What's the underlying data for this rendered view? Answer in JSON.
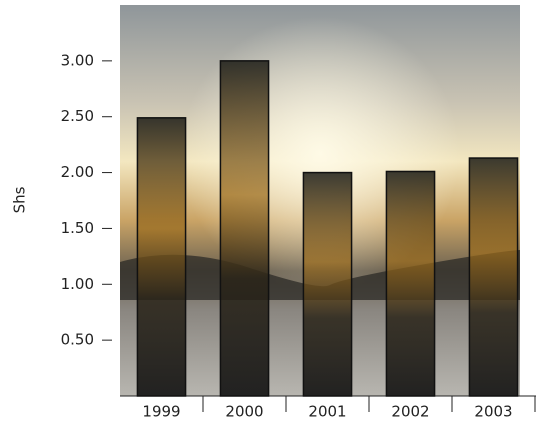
{
  "chart_data": {
    "type": "bar",
    "y_label": "Shs",
    "categories": [
      "1999",
      "2000",
      "2001",
      "2002",
      "2003"
    ],
    "values": [
      2.49,
      3.0,
      2.0,
      2.01,
      2.13
    ],
    "ylim": [
      0,
      3.5
    ],
    "yticks": [
      {
        "value": 0.5,
        "label": "0.50"
      },
      {
        "value": 1,
        "label": "1.00"
      },
      {
        "value": 1.5,
        "label": "1.50"
      },
      {
        "value": 2,
        "label": "2.00"
      },
      {
        "value": 2.5,
        "label": "2.50"
      },
      {
        "value": 3,
        "label": "3.00"
      }
    ],
    "grid": false
  }
}
